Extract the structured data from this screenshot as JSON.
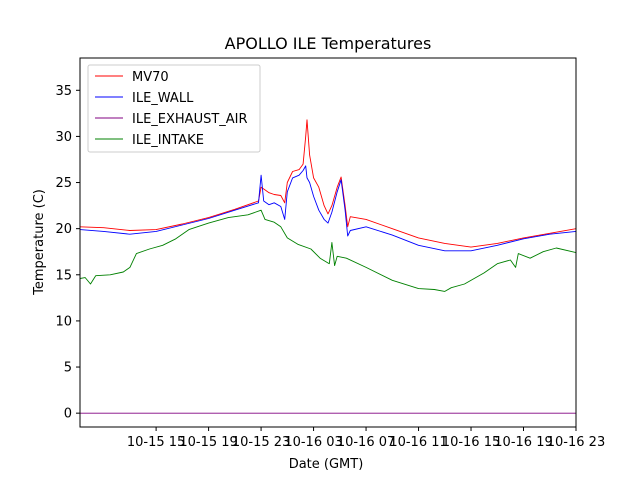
{
  "chart_data": {
    "type": "line",
    "title": "APOLLO ILE Temperatures",
    "xlabel": "Date (GMT)",
    "ylabel": "Temperature (C)",
    "x_unit": "hours since 2019-10-15 00:00 GMT",
    "xlim": [
      9.2,
      47.0
    ],
    "ylim": [
      -1.5,
      38.5
    ],
    "x_ticks": [
      {
        "x": 15,
        "label": "10-15 15"
      },
      {
        "x": 19,
        "label": "10-15 19"
      },
      {
        "x": 23,
        "label": "10-15 23"
      },
      {
        "x": 27,
        "label": "10-16 03"
      },
      {
        "x": 31,
        "label": "10-16 07"
      },
      {
        "x": 35,
        "label": "10-16 11"
      },
      {
        "x": 39,
        "label": "10-16 15"
      },
      {
        "x": 43,
        "label": "10-16 19"
      },
      {
        "x": 47,
        "label": "10-16 23"
      }
    ],
    "y_ticks": [
      {
        "y": 0,
        "label": "0"
      },
      {
        "y": 5,
        "label": "5"
      },
      {
        "y": 10,
        "label": "10"
      },
      {
        "y": 15,
        "label": "15"
      },
      {
        "y": 20,
        "label": "20"
      },
      {
        "y": 25,
        "label": "25"
      },
      {
        "y": 30,
        "label": "30"
      },
      {
        "y": 35,
        "label": "35"
      }
    ],
    "legend_position": "top-left",
    "series": [
      {
        "name": "MV70",
        "color": "#ff0000",
        "points": [
          [
            9.2,
            20.2
          ],
          [
            11,
            20.1
          ],
          [
            13,
            19.8
          ],
          [
            15,
            19.9
          ],
          [
            17,
            20.5
          ],
          [
            19,
            21.2
          ],
          [
            21,
            22.1
          ],
          [
            22.8,
            23.0
          ],
          [
            23.0,
            24.5
          ],
          [
            23.3,
            24.2
          ],
          [
            23.6,
            23.9
          ],
          [
            24.0,
            23.7
          ],
          [
            24.5,
            23.6
          ],
          [
            24.8,
            22.8
          ],
          [
            25.0,
            25.0
          ],
          [
            25.4,
            26.2
          ],
          [
            25.9,
            26.4
          ],
          [
            26.2,
            27.0
          ],
          [
            26.4,
            30.0
          ],
          [
            26.5,
            31.8
          ],
          [
            26.7,
            28.0
          ],
          [
            27.0,
            25.5
          ],
          [
            27.4,
            24.5
          ],
          [
            27.8,
            22.5
          ],
          [
            28.1,
            21.6
          ],
          [
            28.4,
            22.5
          ],
          [
            28.8,
            24.5
          ],
          [
            29.1,
            25.6
          ],
          [
            29.4,
            22.5
          ],
          [
            29.6,
            20.2
          ],
          [
            29.8,
            21.3
          ],
          [
            31,
            21.0
          ],
          [
            33,
            20.0
          ],
          [
            35,
            19.0
          ],
          [
            37,
            18.4
          ],
          [
            39,
            18.0
          ],
          [
            41,
            18.4
          ],
          [
            43,
            19.0
          ],
          [
            45,
            19.5
          ],
          [
            47,
            20.0
          ]
        ]
      },
      {
        "name": "ILE_WALL",
        "color": "#0000ff",
        "points": [
          [
            9.2,
            19.9
          ],
          [
            11,
            19.7
          ],
          [
            13,
            19.4
          ],
          [
            15,
            19.7
          ],
          [
            17,
            20.4
          ],
          [
            19,
            21.1
          ],
          [
            21,
            22.0
          ],
          [
            22.8,
            22.8
          ],
          [
            23.0,
            25.8
          ],
          [
            23.2,
            23.0
          ],
          [
            23.6,
            22.6
          ],
          [
            24.0,
            22.8
          ],
          [
            24.5,
            22.4
          ],
          [
            24.8,
            21.0
          ],
          [
            25.0,
            24.0
          ],
          [
            25.4,
            25.5
          ],
          [
            25.9,
            25.8
          ],
          [
            26.2,
            26.3
          ],
          [
            26.4,
            26.8
          ],
          [
            26.5,
            25.5
          ],
          [
            26.7,
            25.0
          ],
          [
            27.0,
            23.5
          ],
          [
            27.4,
            22.0
          ],
          [
            27.8,
            21.0
          ],
          [
            28.1,
            20.6
          ],
          [
            28.4,
            21.8
          ],
          [
            28.8,
            24.0
          ],
          [
            29.1,
            25.3
          ],
          [
            29.4,
            22.0
          ],
          [
            29.6,
            19.2
          ],
          [
            29.8,
            19.8
          ],
          [
            31,
            20.2
          ],
          [
            33,
            19.3
          ],
          [
            35,
            18.2
          ],
          [
            37,
            17.6
          ],
          [
            39,
            17.6
          ],
          [
            41,
            18.2
          ],
          [
            43,
            18.9
          ],
          [
            45,
            19.4
          ],
          [
            47,
            19.7
          ]
        ]
      },
      {
        "name": "ILE_EXHAUST_AIR",
        "color": "#800080",
        "points": [
          [
            9.2,
            0.0
          ],
          [
            47,
            0.0
          ]
        ]
      },
      {
        "name": "ILE_INTAKE",
        "color": "#008000",
        "points": [
          [
            9.2,
            14.6
          ],
          [
            9.6,
            14.7
          ],
          [
            10.0,
            14.0
          ],
          [
            10.4,
            14.9
          ],
          [
            11.5,
            15.0
          ],
          [
            12.5,
            15.3
          ],
          [
            13.0,
            15.8
          ],
          [
            13.5,
            17.3
          ],
          [
            14.5,
            17.8
          ],
          [
            15.5,
            18.2
          ],
          [
            16.5,
            18.9
          ],
          [
            17.5,
            19.9
          ],
          [
            19.0,
            20.6
          ],
          [
            20.5,
            21.2
          ],
          [
            22.0,
            21.5
          ],
          [
            23.0,
            22.0
          ],
          [
            23.3,
            21.0
          ],
          [
            24.0,
            20.7
          ],
          [
            24.5,
            20.2
          ],
          [
            25.0,
            19.0
          ],
          [
            25.8,
            18.3
          ],
          [
            26.8,
            17.8
          ],
          [
            27.5,
            16.8
          ],
          [
            28.2,
            16.2
          ],
          [
            28.4,
            18.5
          ],
          [
            28.6,
            16.0
          ],
          [
            28.8,
            17.0
          ],
          [
            29.5,
            16.8
          ],
          [
            31,
            15.8
          ],
          [
            33,
            14.4
          ],
          [
            35,
            13.5
          ],
          [
            36.2,
            13.4
          ],
          [
            37.0,
            13.2
          ],
          [
            37.5,
            13.6
          ],
          [
            38.5,
            14.0
          ],
          [
            40.0,
            15.2
          ],
          [
            41.0,
            16.2
          ],
          [
            42.0,
            16.6
          ],
          [
            42.4,
            15.8
          ],
          [
            42.6,
            17.3
          ],
          [
            43.5,
            16.8
          ],
          [
            44.5,
            17.5
          ],
          [
            45.5,
            17.9
          ],
          [
            47,
            17.4
          ]
        ]
      }
    ]
  }
}
